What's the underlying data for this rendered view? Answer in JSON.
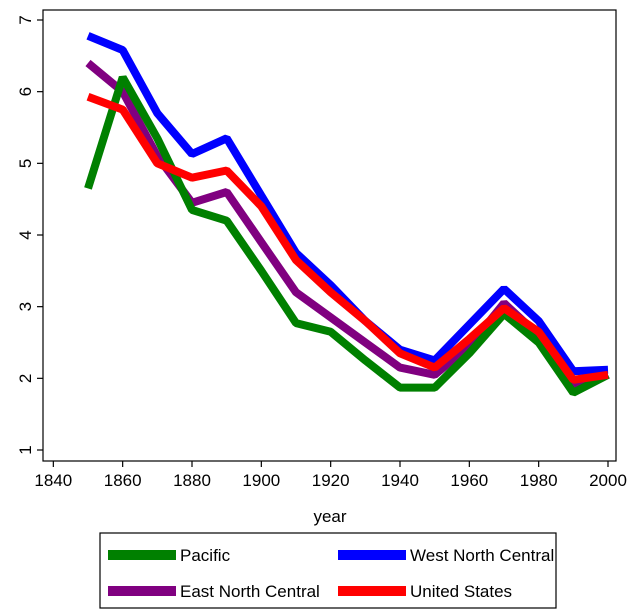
{
  "chart_data": {
    "type": "line",
    "xlabel": "year",
    "ylabel": "",
    "xlim": [
      1840,
      2000
    ],
    "ylim": [
      1,
      7
    ],
    "xticks": [
      1840,
      1860,
      1880,
      1900,
      1920,
      1940,
      1960,
      1980,
      2000
    ],
    "yticks": [
      1,
      2,
      3,
      4,
      5,
      6,
      7
    ],
    "x": [
      1850,
      1860,
      1870,
      1880,
      1890,
      1900,
      1910,
      1920,
      1930,
      1940,
      1950,
      1960,
      1970,
      1980,
      1990,
      2000
    ],
    "series": [
      {
        "name": "East North Central",
        "color": "#800080",
        "values": [
          6.4,
          6.0,
          5.1,
          4.45,
          4.6,
          3.9,
          3.2,
          2.85,
          2.5,
          2.15,
          2.05,
          2.45,
          3.05,
          2.6,
          1.9,
          2.05
        ]
      },
      {
        "name": "West North Central",
        "color": "#0000ff",
        "values": [
          6.78,
          6.58,
          5.7,
          5.13,
          5.35,
          4.55,
          3.75,
          3.3,
          2.8,
          2.4,
          2.25,
          2.75,
          3.25,
          2.8,
          2.1,
          2.12
        ]
      },
      {
        "name": "Pacific",
        "color": "#008000",
        "values": [
          4.65,
          6.2,
          5.35,
          4.35,
          4.2,
          3.5,
          2.77,
          2.65,
          2.25,
          1.87,
          1.87,
          2.35,
          2.9,
          2.5,
          1.8,
          2.05
        ]
      },
      {
        "name": "United States",
        "color": "#ff0000",
        "values": [
          5.93,
          5.75,
          5.0,
          4.8,
          4.9,
          4.4,
          3.65,
          3.2,
          2.8,
          2.35,
          2.15,
          2.55,
          2.98,
          2.65,
          1.98,
          2.05
        ]
      }
    ],
    "legend": [
      {
        "name": "Pacific",
        "color": "#008000"
      },
      {
        "name": "West North Central",
        "color": "#0000ff"
      },
      {
        "name": "East North Central",
        "color": "#800080"
      },
      {
        "name": "United States",
        "color": "#ff0000"
      }
    ],
    "legend_position": "bottom",
    "grid": false
  }
}
